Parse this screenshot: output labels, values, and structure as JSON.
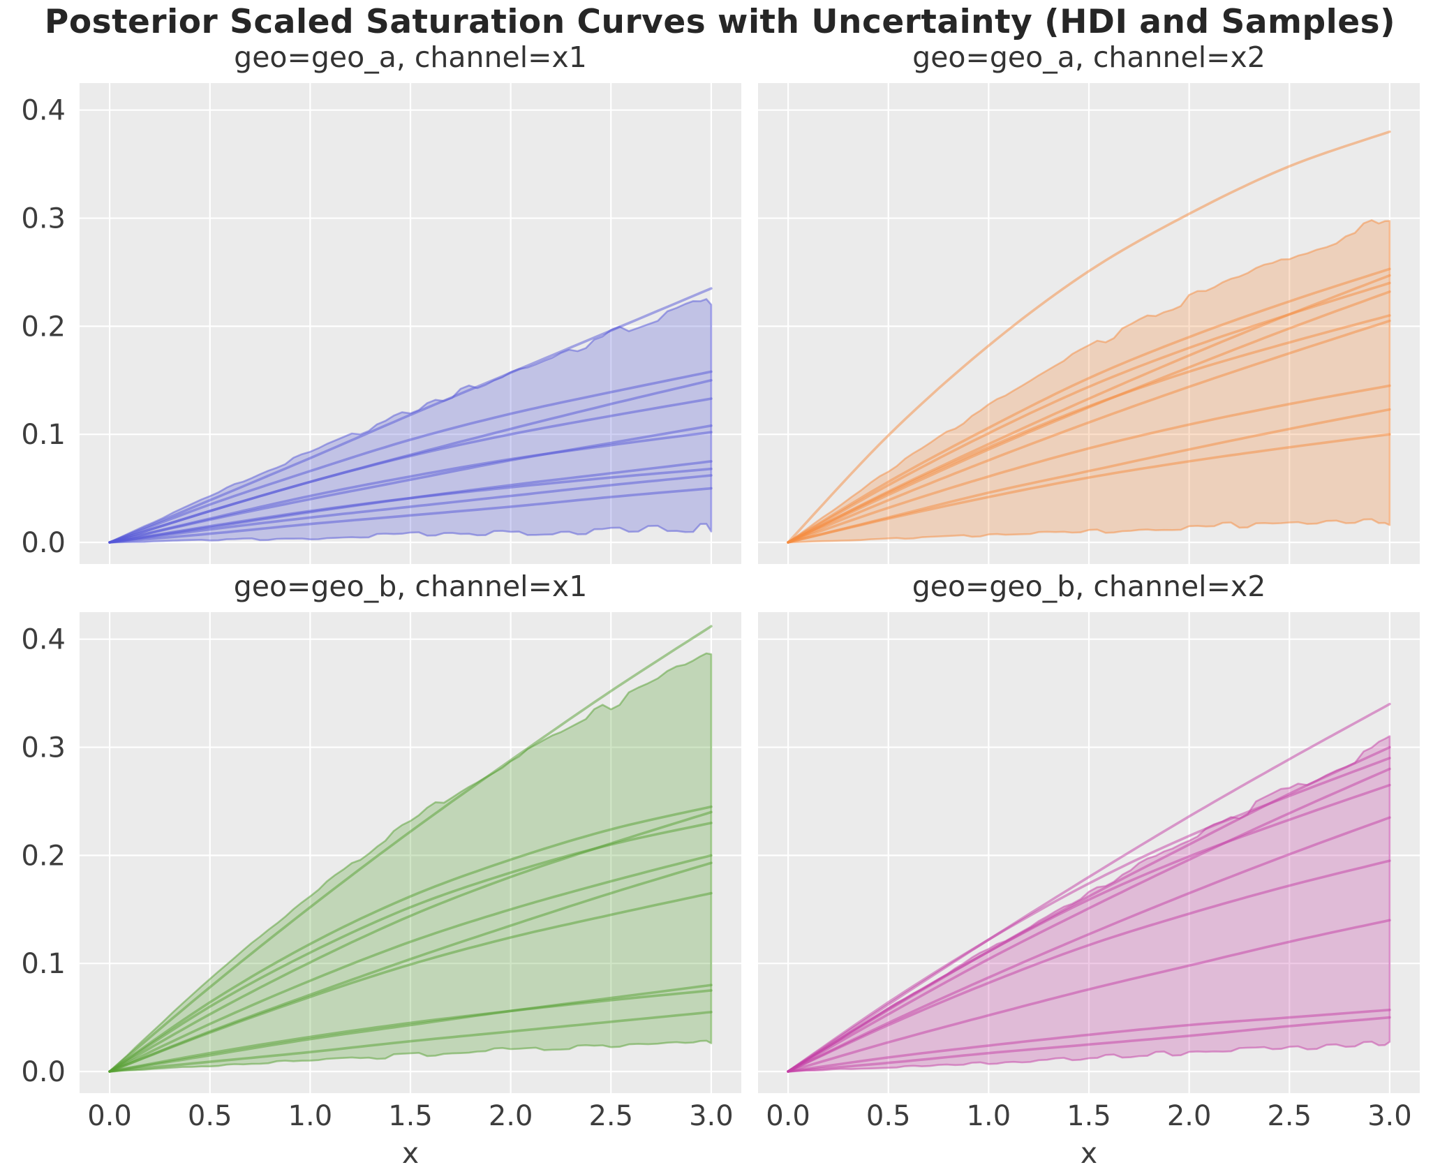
{
  "figure": {
    "title": "Posterior Scaled Saturation Curves with Uncertainty (HDI and Samples)",
    "background_color": "#ffffff",
    "panel_background_color": "#EBEBEB",
    "grid_color": "#ffffff",
    "title_color": "#262626",
    "tick_color": "#3d3d3d"
  },
  "chart_data": {
    "type": "line",
    "title": "Posterior Scaled Saturation Curves with Uncertainty (HDI and Samples)",
    "xlabel": "x",
    "ylabel": "",
    "grid": true,
    "legend": false,
    "xlim": [
      -0.15,
      3.15
    ],
    "ylim": [
      -0.02,
      0.425
    ],
    "xticks": [
      0.0,
      0.5,
      1.0,
      1.5,
      2.0,
      2.5,
      3.0
    ],
    "xtick_labels": [
      "0.0",
      "0.5",
      "1.0",
      "1.5",
      "2.0",
      "2.5",
      "3.0"
    ],
    "yticks": [
      0.0,
      0.1,
      0.2,
      0.3,
      0.4
    ],
    "ytick_labels": [
      "0.0",
      "0.1",
      "0.2",
      "0.3",
      "0.4"
    ],
    "x": [
      0.0,
      0.5,
      1.0,
      1.5,
      2.0,
      2.5,
      3.0
    ],
    "panels": [
      {
        "title": "geo=geo_a, channel=x1",
        "geo": "geo_a",
        "channel": "x1",
        "color": "#5558D8",
        "hdi_upper": [
          0,
          0.043,
          0.083,
          0.121,
          0.157,
          0.192,
          0.225
        ],
        "hdi_lower": [
          0,
          0.002,
          0.004,
          0.007,
          0.009,
          0.011,
          0.013
        ],
        "samples": [
          [
            0,
            0.039,
            0.078,
            0.118,
            0.157,
            0.196,
            0.235
          ],
          [
            0,
            0.035,
            0.066,
            0.095,
            0.119,
            0.139,
            0.158
          ],
          [
            0,
            0.029,
            0.056,
            0.081,
            0.105,
            0.128,
            0.15
          ],
          [
            0,
            0.029,
            0.056,
            0.08,
            0.1,
            0.117,
            0.133
          ],
          [
            0,
            0.021,
            0.04,
            0.058,
            0.076,
            0.092,
            0.108
          ],
          [
            0,
            0.022,
            0.043,
            0.061,
            0.077,
            0.09,
            0.102
          ],
          [
            0,
            0.014,
            0.028,
            0.041,
            0.053,
            0.064,
            0.075
          ],
          [
            0,
            0.015,
            0.029,
            0.041,
            0.051,
            0.06,
            0.068
          ],
          [
            0,
            0.012,
            0.023,
            0.033,
            0.043,
            0.053,
            0.062
          ],
          [
            0,
            0.008,
            0.017,
            0.025,
            0.033,
            0.042,
            0.05
          ]
        ]
      },
      {
        "title": "geo=geo_a, channel=x2",
        "geo": "geo_a",
        "channel": "x2",
        "color": "#F58B3F",
        "hdi_upper": [
          0,
          0.066,
          0.126,
          0.18,
          0.225,
          0.264,
          0.3
        ],
        "hdi_lower": [
          0,
          0.003,
          0.007,
          0.01,
          0.014,
          0.017,
          0.02
        ],
        "samples": [
          [
            0,
            0.099,
            0.182,
            0.251,
            0.304,
            0.348,
            0.38
          ],
          [
            0,
            0.056,
            0.106,
            0.152,
            0.19,
            0.223,
            0.253
          ],
          [
            0,
            0.047,
            0.091,
            0.133,
            0.173,
            0.211,
            0.247
          ],
          [
            0,
            0.053,
            0.101,
            0.144,
            0.18,
            0.211,
            0.24
          ],
          [
            0,
            0.044,
            0.086,
            0.125,
            0.162,
            0.198,
            0.232
          ],
          [
            0,
            0.046,
            0.088,
            0.126,
            0.158,
            0.185,
            0.21
          ],
          [
            0,
            0.039,
            0.076,
            0.111,
            0.144,
            0.175,
            0.205
          ],
          [
            0,
            0.032,
            0.061,
            0.087,
            0.109,
            0.128,
            0.145
          ],
          [
            0,
            0.023,
            0.046,
            0.066,
            0.086,
            0.105,
            0.123
          ],
          [
            0,
            0.022,
            0.042,
            0.06,
            0.075,
            0.088,
            0.1
          ]
        ]
      },
      {
        "title": "geo=geo_b, channel=x1",
        "geo": "geo_b",
        "channel": "x1",
        "color": "#55A032",
        "hdi_upper": [
          0,
          0.085,
          0.162,
          0.231,
          0.289,
          0.339,
          0.385
        ],
        "hdi_lower": [
          0,
          0.005,
          0.01,
          0.015,
          0.02,
          0.025,
          0.03
        ],
        "samples": [
          [
            0,
            0.078,
            0.152,
            0.222,
            0.288,
            0.352,
            0.412
          ],
          [
            0,
            0.064,
            0.118,
            0.162,
            0.196,
            0.224,
            0.245
          ],
          [
            0,
            0.053,
            0.101,
            0.144,
            0.18,
            0.211,
            0.24
          ],
          [
            0,
            0.06,
            0.11,
            0.152,
            0.184,
            0.21,
            0.23
          ],
          [
            0,
            0.044,
            0.084,
            0.12,
            0.15,
            0.176,
            0.2
          ],
          [
            0,
            0.037,
            0.071,
            0.104,
            0.135,
            0.165,
            0.193
          ],
          [
            0,
            0.036,
            0.069,
            0.099,
            0.124,
            0.145,
            0.165
          ],
          [
            0,
            0.015,
            0.03,
            0.043,
            0.056,
            0.068,
            0.08
          ],
          [
            0,
            0.017,
            0.032,
            0.045,
            0.056,
            0.066,
            0.075
          ],
          [
            0,
            0.009,
            0.018,
            0.028,
            0.037,
            0.046,
            0.055
          ]
        ]
      },
      {
        "title": "geo=geo_b, channel=x2",
        "geo": "geo_b",
        "channel": "x2",
        "color": "#C43FA5",
        "hdi_upper": [
          0,
          0.058,
          0.113,
          0.165,
          0.214,
          0.261,
          0.305
        ],
        "hdi_lower": [
          0,
          0.004,
          0.008,
          0.013,
          0.017,
          0.021,
          0.025
        ],
        "samples": [
          [
            0,
            0.062,
            0.122,
            0.18,
            0.236,
            0.289,
            0.34
          ],
          [
            0,
            0.057,
            0.111,
            0.162,
            0.21,
            0.257,
            0.3
          ],
          [
            0,
            0.064,
            0.122,
            0.174,
            0.218,
            0.255,
            0.29
          ],
          [
            0,
            0.053,
            0.104,
            0.151,
            0.196,
            0.239,
            0.28
          ],
          [
            0,
            0.058,
            0.111,
            0.159,
            0.199,
            0.233,
            0.265
          ],
          [
            0,
            0.045,
            0.087,
            0.127,
            0.165,
            0.201,
            0.235
          ],
          [
            0,
            0.043,
            0.082,
            0.117,
            0.146,
            0.172,
            0.195
          ],
          [
            0,
            0.027,
            0.052,
            0.076,
            0.098,
            0.12,
            0.14
          ],
          [
            0,
            0.013,
            0.024,
            0.034,
            0.043,
            0.05,
            0.057
          ],
          [
            0,
            0.008,
            0.017,
            0.025,
            0.033,
            0.042,
            0.05
          ]
        ]
      }
    ]
  }
}
